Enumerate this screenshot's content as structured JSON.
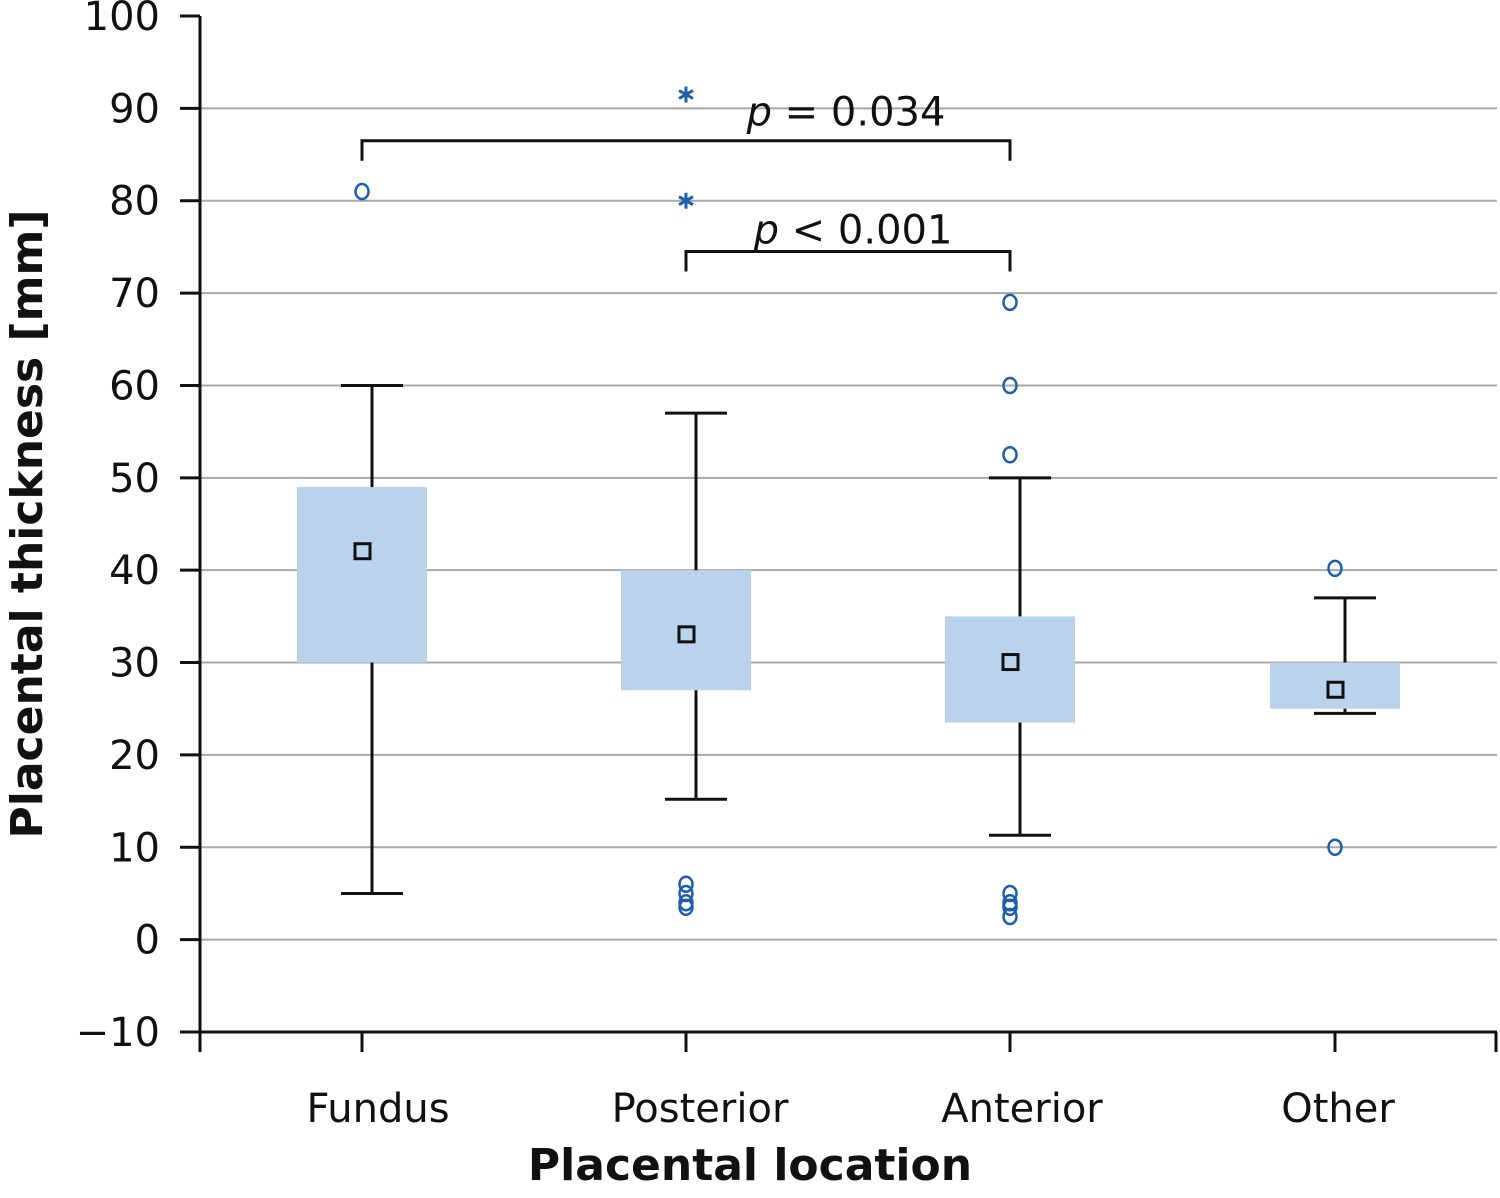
{
  "chart_data": {
    "type": "box",
    "xlabel": "Placental location",
    "ylabel": "Placental thickness [mm]",
    "ylim": [
      -10,
      100
    ],
    "yticks": [
      -10,
      0,
      10,
      20,
      30,
      40,
      50,
      60,
      70,
      80,
      90,
      100
    ],
    "grid": true,
    "categories": [
      "Fundus",
      "Posterior",
      "Anterior",
      "Other"
    ],
    "boxes": [
      {
        "category": "Fundus",
        "whisker_low": 5,
        "q1": 30,
        "q3": 49,
        "whisker_high": 60,
        "mean": 42,
        "outliers": [
          81
        ],
        "extremes": []
      },
      {
        "category": "Posterior",
        "whisker_low": 15.2,
        "q1": 27,
        "q3": 40,
        "whisker_high": 57,
        "mean": 33,
        "outliers": [
          6,
          5,
          4,
          3.5
        ],
        "extremes": [
          80,
          91.5
        ]
      },
      {
        "category": "Anterior",
        "whisker_low": 11.3,
        "q1": 23.5,
        "q3": 35,
        "whisker_high": 50,
        "mean": 30,
        "outliers": [
          69,
          60,
          52.5,
          5,
          4,
          3.5,
          2.5
        ],
        "extremes": []
      },
      {
        "category": "Other",
        "whisker_low": 24.5,
        "q1": 25,
        "q3": 30,
        "whisker_high": 37,
        "mean": 27,
        "outliers": [
          40.2,
          10
        ],
        "extremes": []
      }
    ],
    "annotations": [
      {
        "from": "Fundus",
        "to": "Anterior",
        "y": 86.5,
        "label_italic": "p",
        "label_rest": " = 0.034"
      },
      {
        "from": "Posterior",
        "to": "Anterior",
        "y": 74.5,
        "label_italic": "p",
        "label_rest": " < 0.001"
      }
    ],
    "colors": {
      "box_fill": "#b9d3ed",
      "outlier": "#1d5fab",
      "grid": "#a8a8a8",
      "axis": "#111111"
    }
  }
}
